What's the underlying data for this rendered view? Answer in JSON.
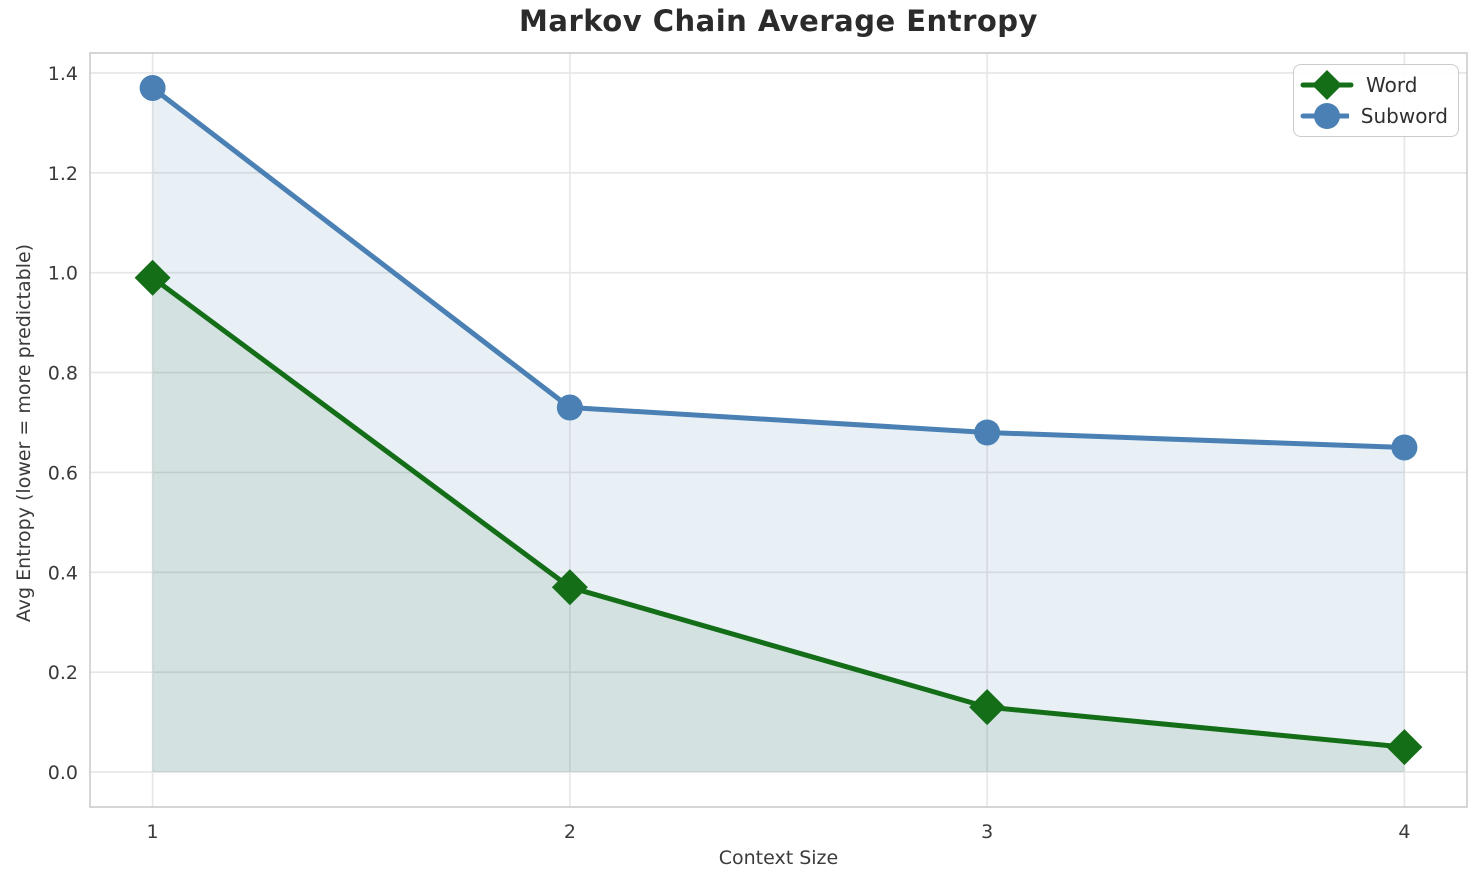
{
  "chart_data": {
    "type": "line",
    "title": "Markov Chain Average Entropy",
    "xlabel": "Context Size",
    "ylabel": "Avg Entropy (lower = more predictable)",
    "x": [
      1,
      2,
      3,
      4
    ],
    "series": [
      {
        "name": "Word",
        "values": [
          0.99,
          0.37,
          0.13,
          0.05
        ],
        "color": "#146e18",
        "fill_color": "rgba(20, 110, 24, 0.10)",
        "marker": "diamond"
      },
      {
        "name": "Subword",
        "values": [
          1.37,
          0.73,
          0.68,
          0.65
        ],
        "color": "#4a80b4",
        "fill_color": "rgba(74, 128, 180, 0.13)",
        "marker": "circle"
      }
    ],
    "xticks": [
      "1",
      "2",
      "3",
      "4"
    ],
    "xtick_values": [
      1,
      2,
      3,
      4
    ],
    "ytick_labels": [
      "0.0",
      "0.2",
      "0.4",
      "0.6",
      "0.8",
      "1.0",
      "1.2",
      "1.4"
    ],
    "ytick_values": [
      0.0,
      0.2,
      0.4,
      0.6,
      0.8,
      1.0,
      1.2,
      1.4
    ],
    "xlim": [
      0.85,
      4.15
    ],
    "ylim": [
      -0.07,
      1.44
    ],
    "fill_baseline": 0,
    "grid": true,
    "grid_color": "#e6e6e6",
    "spine_color": "#cccccc",
    "tick_label_color": "#3b3b3b",
    "legend_position": "upper right"
  }
}
